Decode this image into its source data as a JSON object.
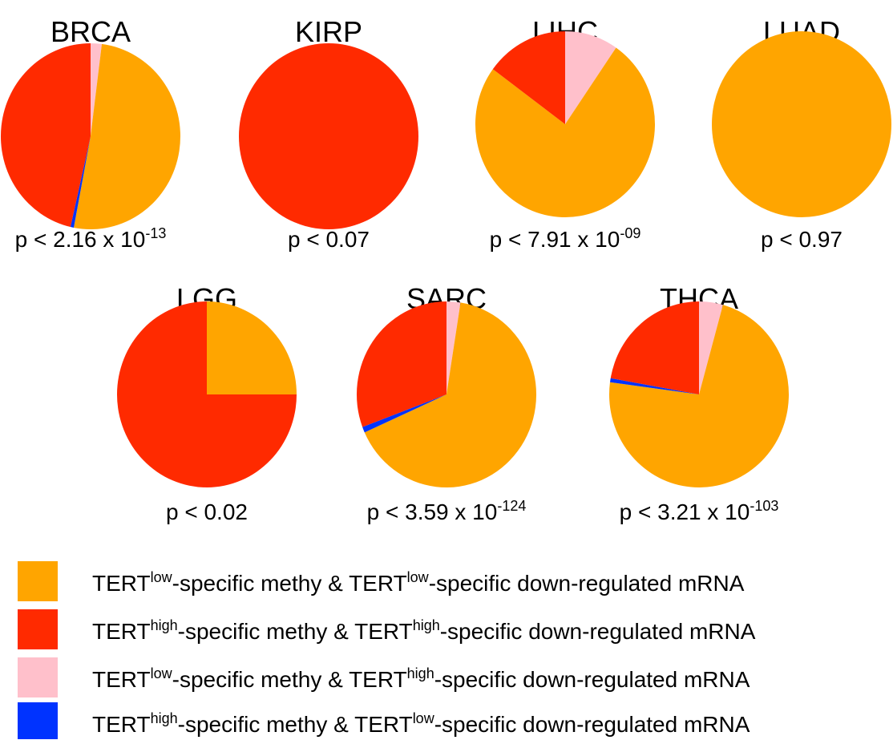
{
  "chart_data": {
    "type": "pie",
    "colors": {
      "low_low": "#FFA500",
      "high_high": "#FF2A00",
      "low_high": "#FFC0CB",
      "high_low": "#0033FF"
    },
    "legend": {
      "placement": "bottom-left",
      "entries": [
        {
          "key": "low_low",
          "parts": [
            {
              "t": "TERT"
            },
            {
              "t": "low",
              "sup": true
            },
            {
              "t": "-specific methy & TERT"
            },
            {
              "t": "low",
              "sup": true
            },
            {
              "t": "-specific down-regulated mRNA"
            }
          ]
        },
        {
          "key": "high_high",
          "parts": [
            {
              "t": "TERT"
            },
            {
              "t": "high",
              "sup": true
            },
            {
              "t": "-specific methy & TERT"
            },
            {
              "t": "high",
              "sup": true
            },
            {
              "t": "-specific down-regulated mRNA"
            }
          ]
        },
        {
          "key": "low_high",
          "parts": [
            {
              "t": "TERT"
            },
            {
              "t": "low",
              "sup": true
            },
            {
              "t": "-specific methy & TERT"
            },
            {
              "t": "high",
              "sup": true
            },
            {
              "t": "-specific down-regulated mRNA"
            }
          ]
        },
        {
          "key": "high_low",
          "parts": [
            {
              "t": "TERT"
            },
            {
              "t": "high",
              "sup": true
            },
            {
              "t": "-specific methy & TERT"
            },
            {
              "t": "low",
              "sup": true
            },
            {
              "t": "-specific down-regulated mRNA"
            }
          ]
        }
      ]
    },
    "pies": [
      {
        "title": "BRCA",
        "p_base": "p < 2.16 x 10",
        "p_exp": "-13",
        "slices": {
          "low_high": 2.0,
          "low_low": 51.0,
          "high_low": 0.6,
          "high_high": 46.4
        }
      },
      {
        "title": "KIRP",
        "p_base": "p < 0.07",
        "p_exp": "",
        "slices": {
          "low_high": 0,
          "low_low": 0,
          "high_low": 0,
          "high_high": 100
        }
      },
      {
        "title": "LIHC",
        "p_base": "p < 7.91 x 10",
        "p_exp": "-09",
        "slices": {
          "low_high": 9.6,
          "low_low": 75.5,
          "high_low": 0,
          "high_high": 14.9
        }
      },
      {
        "title": "LUAD",
        "p_base": "p < 0.97",
        "p_exp": "",
        "slices": {
          "low_high": 0,
          "low_low": 100,
          "high_low": 0,
          "high_high": 0
        }
      },
      {
        "title": "LGG",
        "p_base": "p < 0.02",
        "p_exp": "",
        "slices": {
          "low_high": 0,
          "low_low": 25,
          "high_low": 0,
          "high_high": 75
        }
      },
      {
        "title": "SARC",
        "p_base": "p < 3.59 x 10",
        "p_exp": "-124",
        "slices": {
          "low_high": 2.5,
          "low_low": 65.8,
          "high_low": 1.0,
          "high_high": 30.7
        }
      },
      {
        "title": "THCA",
        "p_base": "p < 3.21 x 10",
        "p_exp": "-103",
        "slices": {
          "low_high": 4.3,
          "low_low": 72.8,
          "high_low": 0.7,
          "high_high": 22.2
        }
      }
    ]
  }
}
